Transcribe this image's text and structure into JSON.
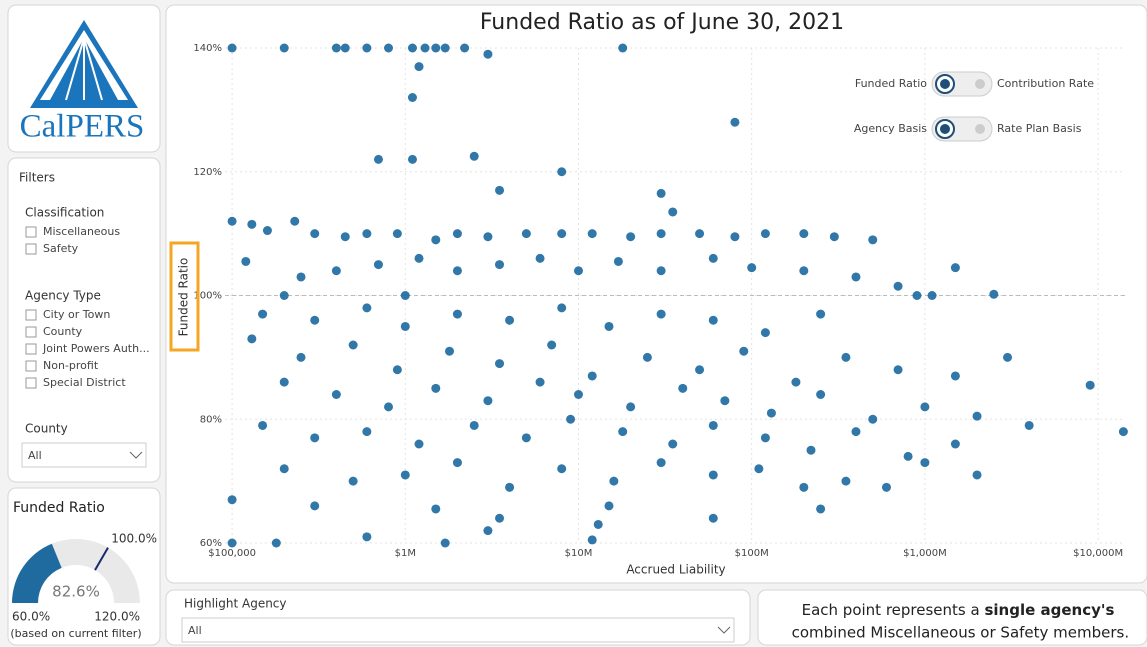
{
  "logo": {
    "text": "CalPERS"
  },
  "filters": {
    "title": "Filters",
    "groups": [
      {
        "label": "Classification",
        "items": [
          "Miscellaneous",
          "Safety"
        ]
      },
      {
        "label": "Agency Type",
        "items": [
          "City or Town",
          "County",
          "Joint Powers Auth...",
          "Non-profit",
          "Special District"
        ]
      }
    ],
    "county": {
      "label": "County",
      "selected": "All"
    }
  },
  "gauge": {
    "title": "Funded Ratio",
    "value": {
      "value": 82.6,
      "label": "82.6%"
    },
    "min": {
      "value": 60,
      "label": "60.0%"
    },
    "max": {
      "value": 120,
      "label": "120.0%"
    },
    "target": {
      "value": 100,
      "label": "100.0%"
    },
    "note": "(based on current filter)"
  },
  "toggles": [
    {
      "left": "Funded Ratio",
      "right": "Contribution Rate"
    },
    {
      "left": "Agency Basis",
      "right": "Rate Plan Basis"
    }
  ],
  "highlight": {
    "label": "Highlight Agency",
    "selected": "All"
  },
  "footer": {
    "parts": [
      "Each point represents a ",
      "single agency's",
      " combined Miscellaneous or Safety members."
    ]
  },
  "chart_data": {
    "type": "scatter",
    "title": "Funded Ratio as of June 30, 2021",
    "x_label": "Accrued Liability",
    "y_label": "Funded Ratio",
    "color": "#1f6b9f",
    "x_scale": "log",
    "grid": true,
    "reference_line": 100,
    "xlim": [
      91000,
      14300000000
    ],
    "ylim": [
      60,
      140
    ],
    "xticks": [
      {
        "value": 100000,
        "label": "$100,000"
      },
      {
        "value": 1000000,
        "label": "$1M"
      },
      {
        "value": 10000000,
        "label": "$10M"
      },
      {
        "value": 100000000,
        "label": "$100M"
      },
      {
        "value": 1000000000,
        "label": "$1,000M"
      },
      {
        "value": 10000000000,
        "label": "$10,000M"
      }
    ],
    "yticks": [
      {
        "value": 60,
        "label": "60%"
      },
      {
        "value": 80,
        "label": "80%"
      },
      {
        "value": 100,
        "label": "100%"
      },
      {
        "value": 120,
        "label": "120%"
      },
      {
        "value": 140,
        "label": "140%"
      }
    ],
    "x": [
      100000,
      200000,
      400000,
      450000,
      600000,
      800000,
      1100000,
      1300000,
      1500000,
      1700000,
      2200000,
      18000000,
      3000000,
      1200000,
      1100000,
      80000000,
      700000,
      1100000,
      2500000,
      8000000,
      3500000,
      30000000,
      35000000,
      100000,
      130000,
      230000,
      160000,
      300000,
      450000,
      600000,
      900000,
      1500000,
      2000000,
      3000000,
      5000000,
      8000000,
      12000000,
      20000000,
      30000000,
      50000000,
      80000000,
      120000000,
      200000000,
      300000000,
      500000000,
      120000,
      250000,
      400000,
      700000,
      1200000,
      2000000,
      3500000,
      6000000,
      10000000,
      17000000,
      30000000,
      60000000,
      100000000,
      200000000,
      400000000,
      700000000,
      1500000000,
      200000,
      1000000,
      900000000,
      1100000000,
      2500000000,
      150000,
      300000,
      600000,
      1000000,
      2000000,
      4000000,
      8000000,
      15000000,
      30000000,
      60000000,
      120000000,
      250000000,
      130000,
      250000,
      500000,
      900000,
      1800000,
      3500000,
      7000000,
      12000000,
      25000000,
      50000000,
      90000000,
      180000000,
      350000000,
      700000000,
      1500000000,
      3000000000,
      9000000000,
      200000,
      400000,
      800000,
      1500000,
      3000000,
      6000000,
      10000000,
      20000000,
      40000000,
      70000000,
      130000000,
      250000000,
      500000000,
      1000000000,
      2000000000,
      4000000000,
      150000,
      300000,
      600000,
      1200000,
      2500000,
      5000000,
      9000000,
      18000000,
      35000000,
      60000000,
      120000000,
      220000000,
      400000000,
      800000000,
      1500000000,
      14000000000,
      200000,
      500000,
      1000000,
      2000000,
      4000000,
      8000000,
      16000000,
      30000000,
      60000000,
      110000000,
      200000000,
      350000000,
      600000000,
      1000000000,
      2000000000,
      100000,
      300000,
      1500000,
      3500000,
      15000000,
      60000000,
      250000000,
      13000000,
      100000,
      180000,
      600000,
      1700000,
      3000000,
      12000000
    ],
    "values": [
      140,
      140,
      140,
      140,
      140,
      140,
      140,
      140,
      140,
      140,
      140,
      140,
      139,
      137,
      132,
      128,
      122,
      122,
      122.5,
      120,
      117,
      116.5,
      113.5,
      112,
      111.5,
      112,
      110.5,
      110,
      109.5,
      110,
      110,
      109,
      110,
      109.5,
      110,
      110,
      110,
      109.5,
      110,
      110,
      109.5,
      110,
      110,
      109.5,
      109,
      105.5,
      103,
      104,
      105,
      106,
      104,
      105,
      106,
      104,
      105.5,
      104,
      106,
      104.5,
      104,
      103,
      101.5,
      104.5,
      100,
      100,
      100,
      100,
      100.2,
      97,
      96,
      98,
      95,
      97,
      96,
      98,
      95,
      97,
      96,
      94,
      97,
      93,
      90,
      92,
      88,
      91,
      89,
      92,
      87,
      90,
      88,
      91,
      86,
      90,
      88,
      87,
      90,
      85.5,
      86,
      84,
      82,
      85,
      83,
      86,
      84,
      82,
      85,
      83,
      81,
      84,
      80,
      82,
      80.5,
      79,
      79,
      77,
      78,
      76,
      79,
      77,
      80,
      78,
      76,
      79,
      77,
      75,
      78,
      74,
      76,
      78,
      72,
      70,
      71,
      73,
      69,
      72,
      70,
      73,
      71,
      72,
      69,
      70,
      69,
      73,
      71,
      67,
      66,
      65.5,
      64,
      66,
      64,
      65.5,
      63,
      60,
      60,
      61,
      60,
      62,
      60.5
    ]
  }
}
